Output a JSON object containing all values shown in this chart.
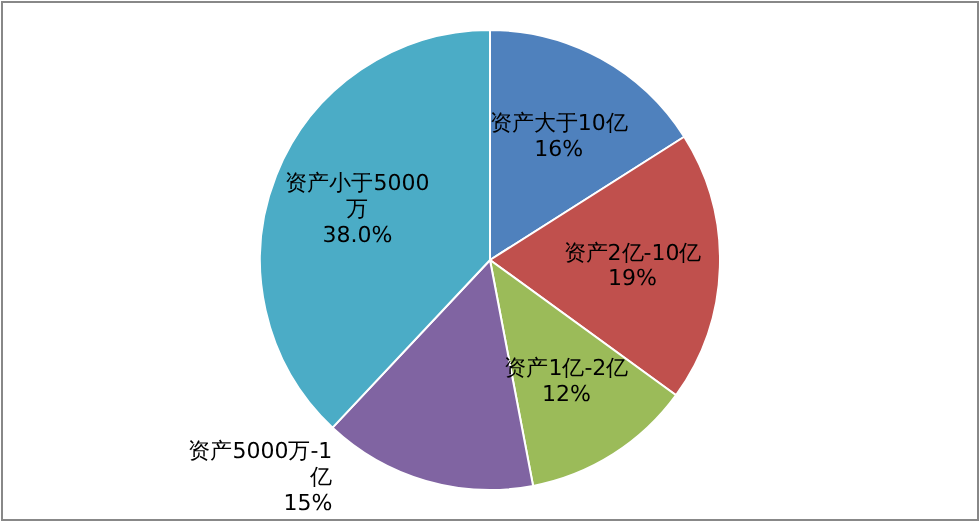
{
  "chart_data": {
    "type": "pie",
    "categories": [
      "资产大于10亿",
      "资产2亿-10亿",
      "资产1亿-2亿",
      "资产5000万-1亿",
      "资产小于5000万"
    ],
    "values": [
      16,
      19,
      12,
      15,
      38
    ],
    "value_labels": [
      "16%",
      "19%",
      "12%",
      "15%",
      "38.0%"
    ],
    "colors": [
      "#4f81bd",
      "#c0504d",
      "#9bbb59",
      "#8064a2",
      "#4bacc6"
    ]
  }
}
